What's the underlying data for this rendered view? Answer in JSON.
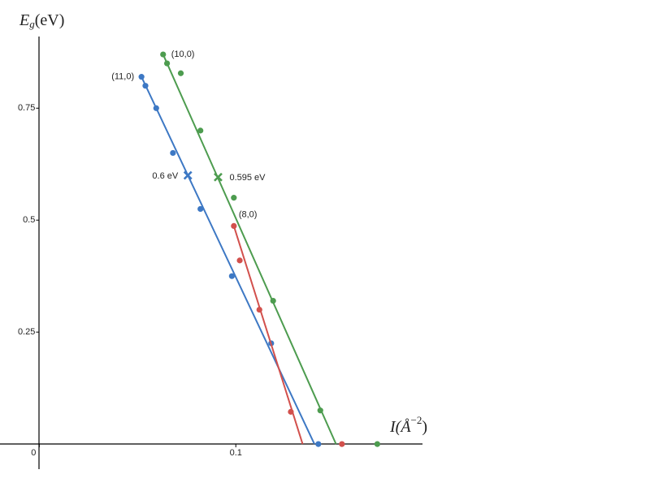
{
  "chart_data": {
    "type": "scatter",
    "y_label": {
      "base": "E",
      "sub": "g",
      "rest": "(eV)"
    },
    "x_label": {
      "base": "I(Å",
      "sup": "−2",
      "rest": ")"
    },
    "xlim": [
      -0.02,
      0.195
    ],
    "ylim": [
      -0.056,
      0.91
    ],
    "xticks": [
      0,
      0.1
    ],
    "yticks": [
      0.25,
      0.5,
      0.75
    ],
    "series": [
      {
        "name": "(11,0)",
        "color": "#3d78c4",
        "x": [
          0.052,
          0.054,
          0.0595,
          0.068,
          0.082,
          0.098,
          0.118,
          0.142
        ],
        "values": [
          0.82,
          0.8,
          0.75,
          0.65,
          0.525,
          0.375,
          0.225,
          0
        ],
        "fit": {
          "x": [
            0.052,
            0.14
          ],
          "values": [
            0.82,
            0
          ]
        }
      },
      {
        "name": "(10,0)",
        "color": "#4d9c4f",
        "x": [
          0.063,
          0.065,
          0.072,
          0.082,
          0.099,
          0.119,
          0.143,
          0.172
        ],
        "values": [
          0.87,
          0.85,
          0.828,
          0.7,
          0.55,
          0.32,
          0.075,
          0
        ],
        "fit": {
          "x": [
            0.063,
            0.151
          ],
          "values": [
            0.87,
            0
          ]
        }
      },
      {
        "name": "(8,0)",
        "color": "#d2504c",
        "x": [
          0.099,
          0.102,
          0.112,
          0.128,
          0.154
        ],
        "values": [
          0.487,
          0.41,
          0.3,
          0.072,
          0
        ],
        "fit": {
          "x": [
            0.099,
            0.134
          ],
          "values": [
            0.487,
            0
          ]
        }
      }
    ],
    "annotations": [
      {
        "text": "0.6 eV",
        "x": 0.0756,
        "y": 0.6,
        "color": "#3d78c4"
      },
      {
        "text": "0.595 eV",
        "x": 0.091,
        "y": 0.596,
        "color": "#4d9c4f"
      }
    ]
  }
}
